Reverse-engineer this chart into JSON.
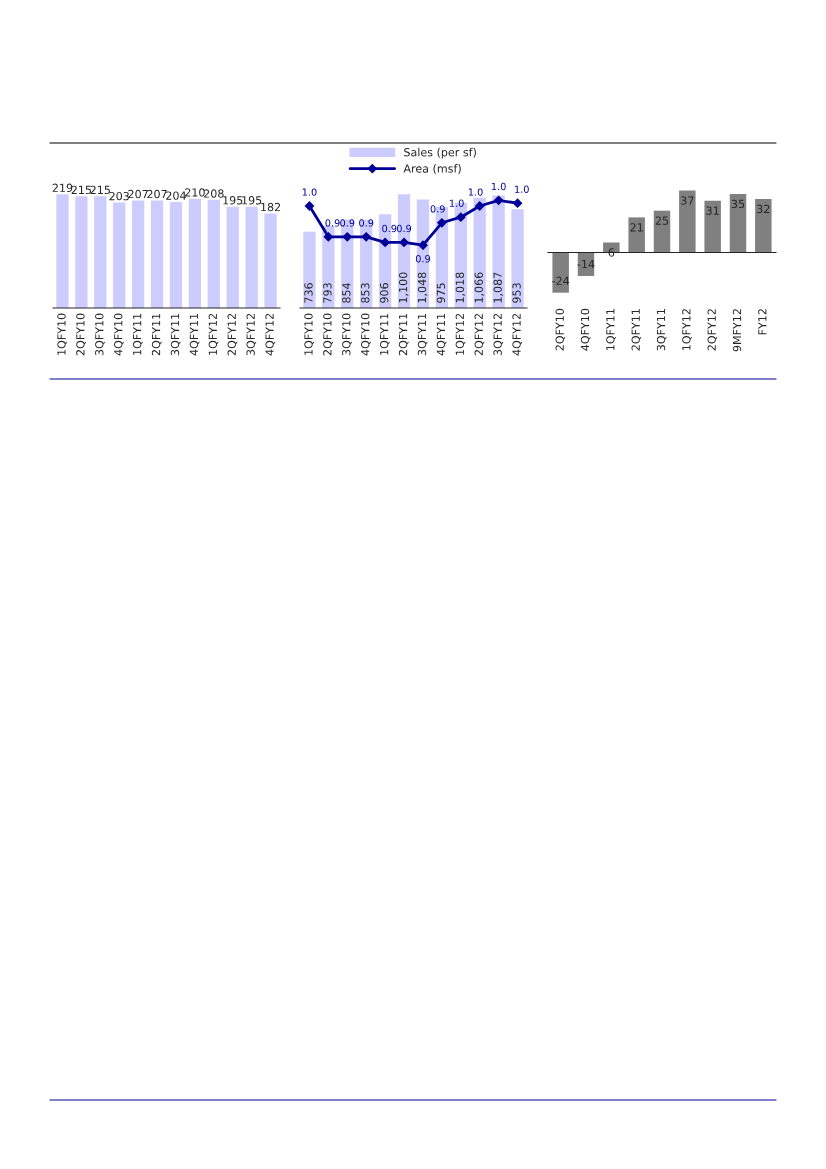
{
  "chart_data": [
    {
      "type": "bar",
      "categories": [
        "1QFY10",
        "2QFY10",
        "3QFY10",
        "4QFY10",
        "1QFY11",
        "2QFY11",
        "3QFY11",
        "4QFY11",
        "1QFY12",
        "2QFY12",
        "3QFY12",
        "4QFY12"
      ],
      "values": [
        219,
        215,
        215,
        203,
        207,
        207,
        204,
        210,
        208,
        195,
        195,
        182
      ],
      "color": "#ccccff",
      "data_labels": true,
      "tick_labels": "x"
    },
    {
      "type": "bar",
      "categories": [
        "1QFY10",
        "2QFY10",
        "3QFY10",
        "4QFY10",
        "1QFY11",
        "2QFY11",
        "3QFY11",
        "4QFY11",
        "1QFY12",
        "2QFY12",
        "3QFY12",
        "4QFY12"
      ],
      "series": [
        {
          "name": "Sales (per sf)",
          "type": "bar",
          "color": "#ccccff",
          "values": [
            736,
            793,
            854,
            853,
            906,
            1100,
            1048,
            975,
            1018,
            1066,
            1087,
            953
          ],
          "value_labels": [
            "736",
            "793",
            "854",
            "853",
            "906",
            "1,100",
            "1,048",
            "975",
            "1,018",
            "1,066",
            "1,087",
            "953"
          ]
        },
        {
          "name": "Area (msf)",
          "type": "line",
          "axis": "y2",
          "color": "#000099",
          "marker": "diamond",
          "values": [
            1.0,
            0.89,
            0.89,
            0.89,
            0.87,
            0.87,
            0.86,
            0.94,
            0.96,
            1.0,
            1.02,
            1.01
          ],
          "value_labels": [
            "1.0",
            "0.9",
            "0.9",
            "0.9",
            "0.9",
            "0.9",
            "0.9",
            "0.9",
            "1.0",
            "1.0",
            "1.0",
            "1.0"
          ]
        }
      ],
      "legend": "top",
      "tick_labels": "x"
    },
    {
      "type": "bar",
      "categories": [
        "2QFY10",
        "4QFY10",
        "1QFY11",
        "2QFY11",
        "3QFY11",
        "1QFY12",
        "2QFY12",
        "9MFY12",
        "FY12"
      ],
      "values": [
        -24,
        -14,
        6,
        21,
        25,
        37,
        31,
        35,
        32
      ],
      "color": "#808080",
      "data_labels": true,
      "tick_labels": "x"
    }
  ]
}
